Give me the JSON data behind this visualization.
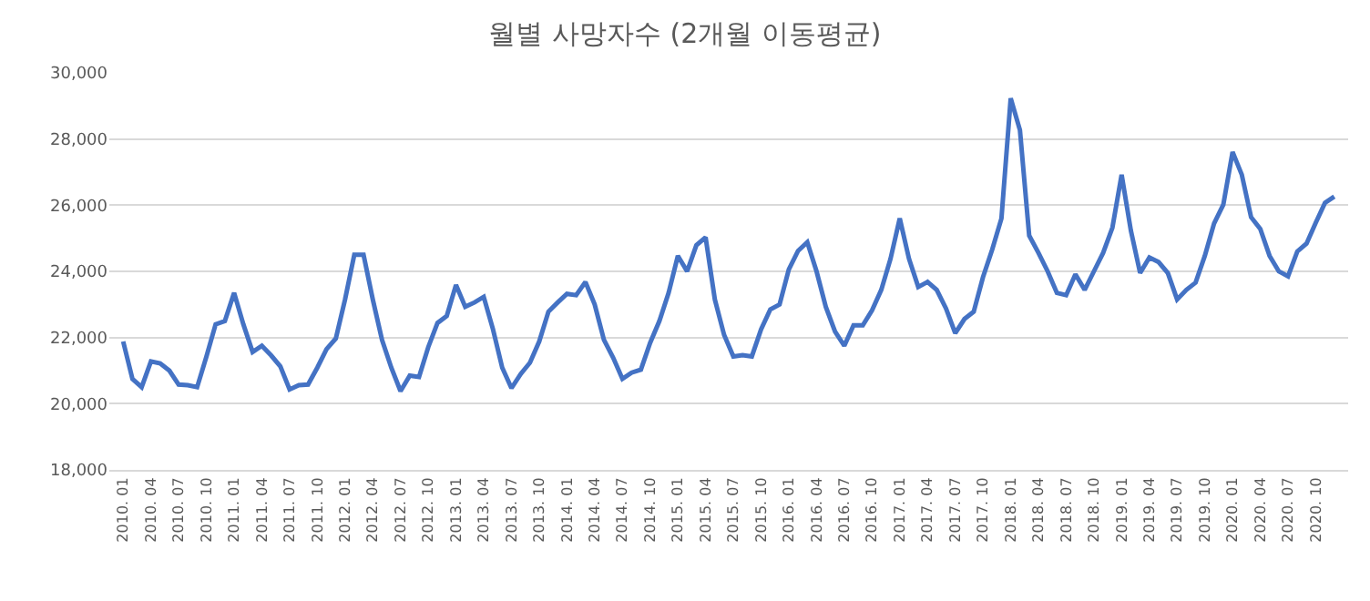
{
  "chart_data": {
    "type": "line",
    "title": "월별 사망자수 (2개월 이동평균)",
    "categories": [
      "2010. 01",
      null,
      null,
      "2010. 04",
      null,
      null,
      "2010. 07",
      null,
      null,
      "2010. 10",
      null,
      null,
      "2011. 01",
      null,
      null,
      "2011. 04",
      null,
      null,
      "2011. 07",
      null,
      null,
      "2011. 10",
      null,
      null,
      "2012. 01",
      null,
      null,
      "2012. 04",
      null,
      null,
      "2012. 07",
      null,
      null,
      "2012. 10",
      null,
      null,
      "2013. 01",
      null,
      null,
      "2013. 04",
      null,
      null,
      "2013. 07",
      null,
      null,
      "2013. 10",
      null,
      null,
      "2014. 01",
      null,
      null,
      "2014. 04",
      null,
      null,
      "2014. 07",
      null,
      null,
      "2014. 10",
      null,
      null,
      "2015. 01",
      null,
      null,
      "2015. 04",
      null,
      null,
      "2015. 07",
      null,
      null,
      "2015. 10",
      null,
      null,
      "2016. 01",
      null,
      null,
      "2016. 04",
      null,
      null,
      "2016. 07",
      null,
      null,
      "2016. 10",
      null,
      null,
      "2017. 01",
      null,
      null,
      "2017. 04",
      null,
      null,
      "2017. 07",
      null,
      null,
      "2017. 10",
      null,
      null,
      "2018. 01",
      null,
      null,
      "2018. 04",
      null,
      null,
      "2018. 07",
      null,
      null,
      "2018. 10",
      null,
      null,
      "2019. 01",
      null,
      null,
      "2019. 04",
      null,
      null,
      "2019. 07",
      null,
      null,
      "2019. 10",
      null,
      null,
      "2020. 01",
      null,
      null,
      "2020. 04",
      null,
      null,
      "2020. 07",
      null,
      null,
      "2020. 10",
      null,
      null
    ],
    "series": [
      {
        "color": "#4472c4",
        "values": [
          21880,
          20750,
          20500,
          21280,
          21220,
          21000,
          20580,
          20560,
          20500,
          21420,
          22400,
          22500,
          23350,
          22400,
          21560,
          21750,
          21460,
          21130,
          20430,
          20560,
          20580,
          21090,
          21650,
          21970,
          23150,
          24500,
          24500,
          23150,
          21930,
          21090,
          20380,
          20850,
          20810,
          21710,
          22440,
          22650,
          23590,
          22930,
          23060,
          23230,
          22250,
          21090,
          20470,
          20900,
          21240,
          21880,
          22780,
          23060,
          23320,
          23280,
          23680,
          23000,
          21930,
          21390,
          20750,
          20940,
          21030,
          21840,
          22500,
          23350,
          24470,
          24000,
          24790,
          25030,
          23150,
          22080,
          21430,
          21470,
          21430,
          22250,
          22850,
          23000,
          24060,
          24620,
          24880,
          24000,
          22930,
          22180,
          21750,
          22370,
          22370,
          22820,
          23440,
          24380,
          25600,
          24380,
          23530,
          23680,
          23440,
          22880,
          22130,
          22560,
          22780,
          23820,
          24660,
          25600,
          29230,
          28270,
          25080,
          24560,
          24000,
          23350,
          23280,
          23910,
          23440,
          24000,
          24560,
          25320,
          26920,
          25230,
          23950,
          24420,
          24280,
          23950,
          23150,
          23440,
          23660,
          24470,
          25450,
          26020,
          27610,
          26920,
          25640,
          25280,
          24470,
          24000,
          23850,
          24600,
          24840,
          25470,
          26070,
          26260
        ]
      }
    ],
    "ylim": [
      18000,
      30000
    ],
    "yticks": [
      {
        "value": 18000,
        "label": "18,000"
      },
      {
        "value": 20000,
        "label": "20,000"
      },
      {
        "value": 22000,
        "label": "22,000"
      },
      {
        "value": 24000,
        "label": "24,000"
      },
      {
        "value": 26000,
        "label": "26,000"
      },
      {
        "value": 28000,
        "label": "28,000"
      },
      {
        "value": 30000,
        "label": "30,000"
      }
    ],
    "grid": "y",
    "marker": "none",
    "line_style": "solid"
  }
}
